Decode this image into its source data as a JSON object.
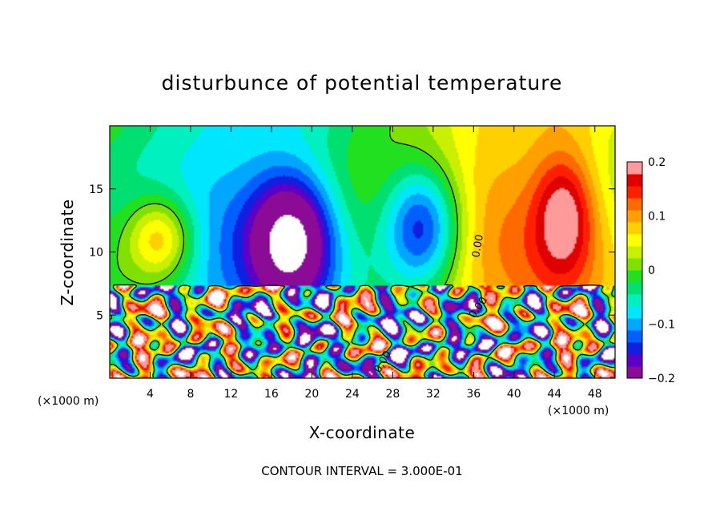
{
  "chart_data": {
    "type": "heatmap",
    "title": "disturbunce of potential temperature",
    "xlabel": "X-coordinate",
    "ylabel": "Z-coordinate",
    "x_unit": "(×1000 m)",
    "y_unit": "(×1000 m)",
    "xlim": [
      0,
      50
    ],
    "ylim": [
      0,
      20
    ],
    "x_ticks": [
      4,
      8,
      12,
      16,
      20,
      24,
      28,
      32,
      36,
      40,
      44,
      48
    ],
    "y_ticks": [
      5,
      10,
      15
    ],
    "colorbar": {
      "min": -0.2,
      "max": 0.2,
      "tick_values": [
        0.2,
        0.1,
        0,
        -0.1,
        -0.2
      ],
      "tick_labels": [
        "0.2",
        "0.1",
        "0",
        "−0.1",
        "−0.2"
      ],
      "colors": [
        "#8b0a96",
        "#5a00c8",
        "#1020e0",
        "#0060ff",
        "#00a6ff",
        "#00e6ff",
        "#00f0c0",
        "#00e070",
        "#20e020",
        "#80e000",
        "#c8f000",
        "#ffff00",
        "#ffd000",
        "#ffa000",
        "#ff6a00",
        "#ff2000",
        "#e00000",
        "#ff9a9a"
      ]
    },
    "contour_label": "0.00",
    "contour_interval_text": "CONTOUR INTERVAL = 3.000E-01",
    "features": [
      {
        "kind": "positive-anomaly",
        "x": 5,
        "z": 11,
        "amp": 0.15,
        "sx": 3.5,
        "sz": 3.5
      },
      {
        "kind": "positive-anomaly",
        "x": 45,
        "z": 13,
        "amp": 0.12,
        "sx": 3,
        "sz": 5
      },
      {
        "kind": "negative-anomaly",
        "x": 18,
        "z": 11,
        "amp": -0.2,
        "sx": 4,
        "sz": 5
      },
      {
        "kind": "negative-anomaly",
        "x": 31,
        "z": 12,
        "amp": -0.2,
        "sx": 4,
        "sz": 5
      },
      {
        "kind": "turbulent-layer",
        "z_top": 7.3
      }
    ]
  }
}
